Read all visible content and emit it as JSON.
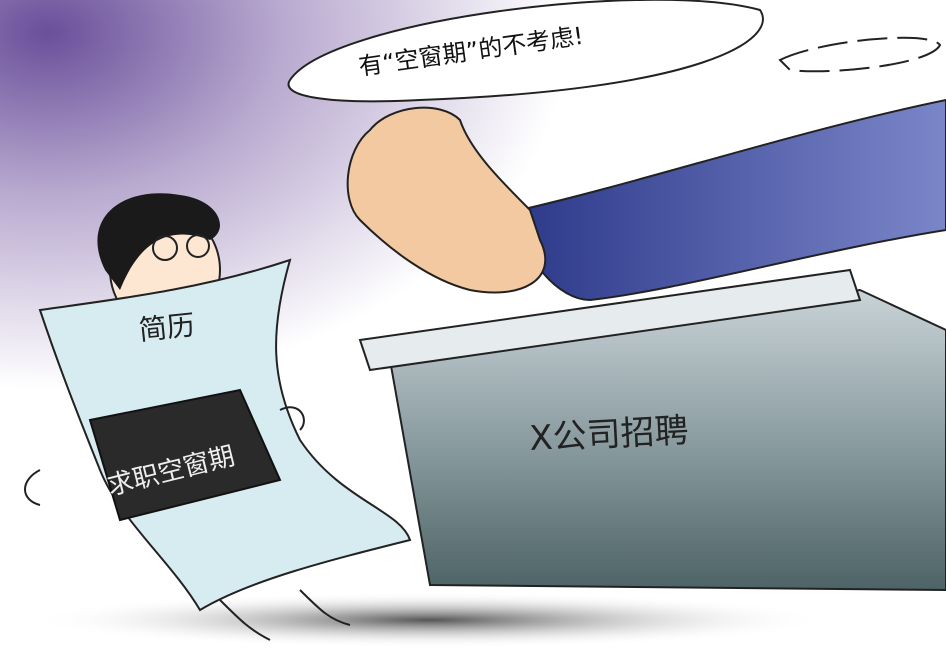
{
  "speech_bubble": {
    "text": "有“空窗期”的不考虑!"
  },
  "resume": {
    "title": "简历",
    "label": "求职空窗期"
  },
  "box": {
    "label": "X公司招聘"
  }
}
